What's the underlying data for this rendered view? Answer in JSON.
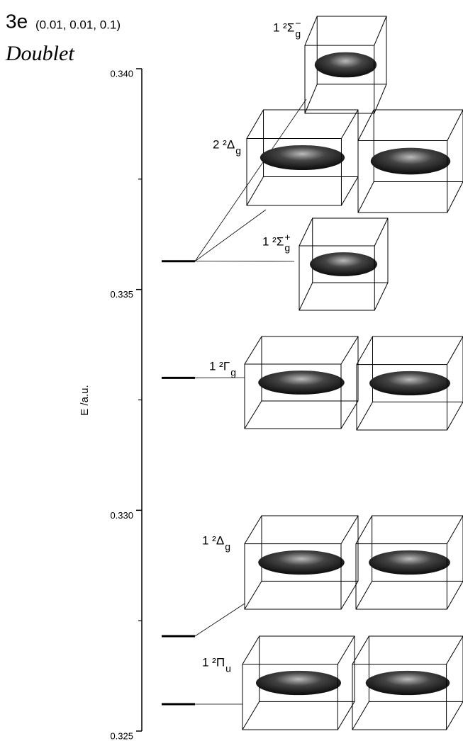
{
  "chart_data": {
    "type": "levels",
    "title": "3e",
    "subtitle": "(0.01, 0.01, 0.1)",
    "annotation": "Doublet",
    "y_label": "E /a.u.",
    "ylim": [
      0.325,
      0.34
    ],
    "yticks": [
      {
        "value": 0.325,
        "label": "0.325"
      },
      {
        "value": 0.33,
        "label": "0.330"
      },
      {
        "value": 0.335,
        "label": "0.335"
      },
      {
        "value": 0.34,
        "label": "0.340"
      }
    ],
    "minor_yticks": [
      0.3275,
      0.3325,
      0.3375
    ],
    "color": "#000000",
    "levels": [
      {
        "value": 0.33564,
        "states": [
          {
            "label": "1 ²Σ",
            "sub": "g",
            "sup": "−"
          },
          {
            "label": "2 ²Δ",
            "sub": "g"
          },
          {
            "label": "1 ²Σ",
            "sub": "g",
            "sup": "+"
          }
        ]
      },
      {
        "value": 0.333,
        "states": [
          {
            "label": "1 ²Γ",
            "sub": "g"
          }
        ]
      },
      {
        "value": 0.32715,
        "states": [
          {
            "label": "1 ²Δ",
            "sub": "g"
          }
        ]
      },
      {
        "value": 0.32561,
        "states": [
          {
            "label": "1 ²Π",
            "sub": "u"
          }
        ]
      }
    ]
  }
}
